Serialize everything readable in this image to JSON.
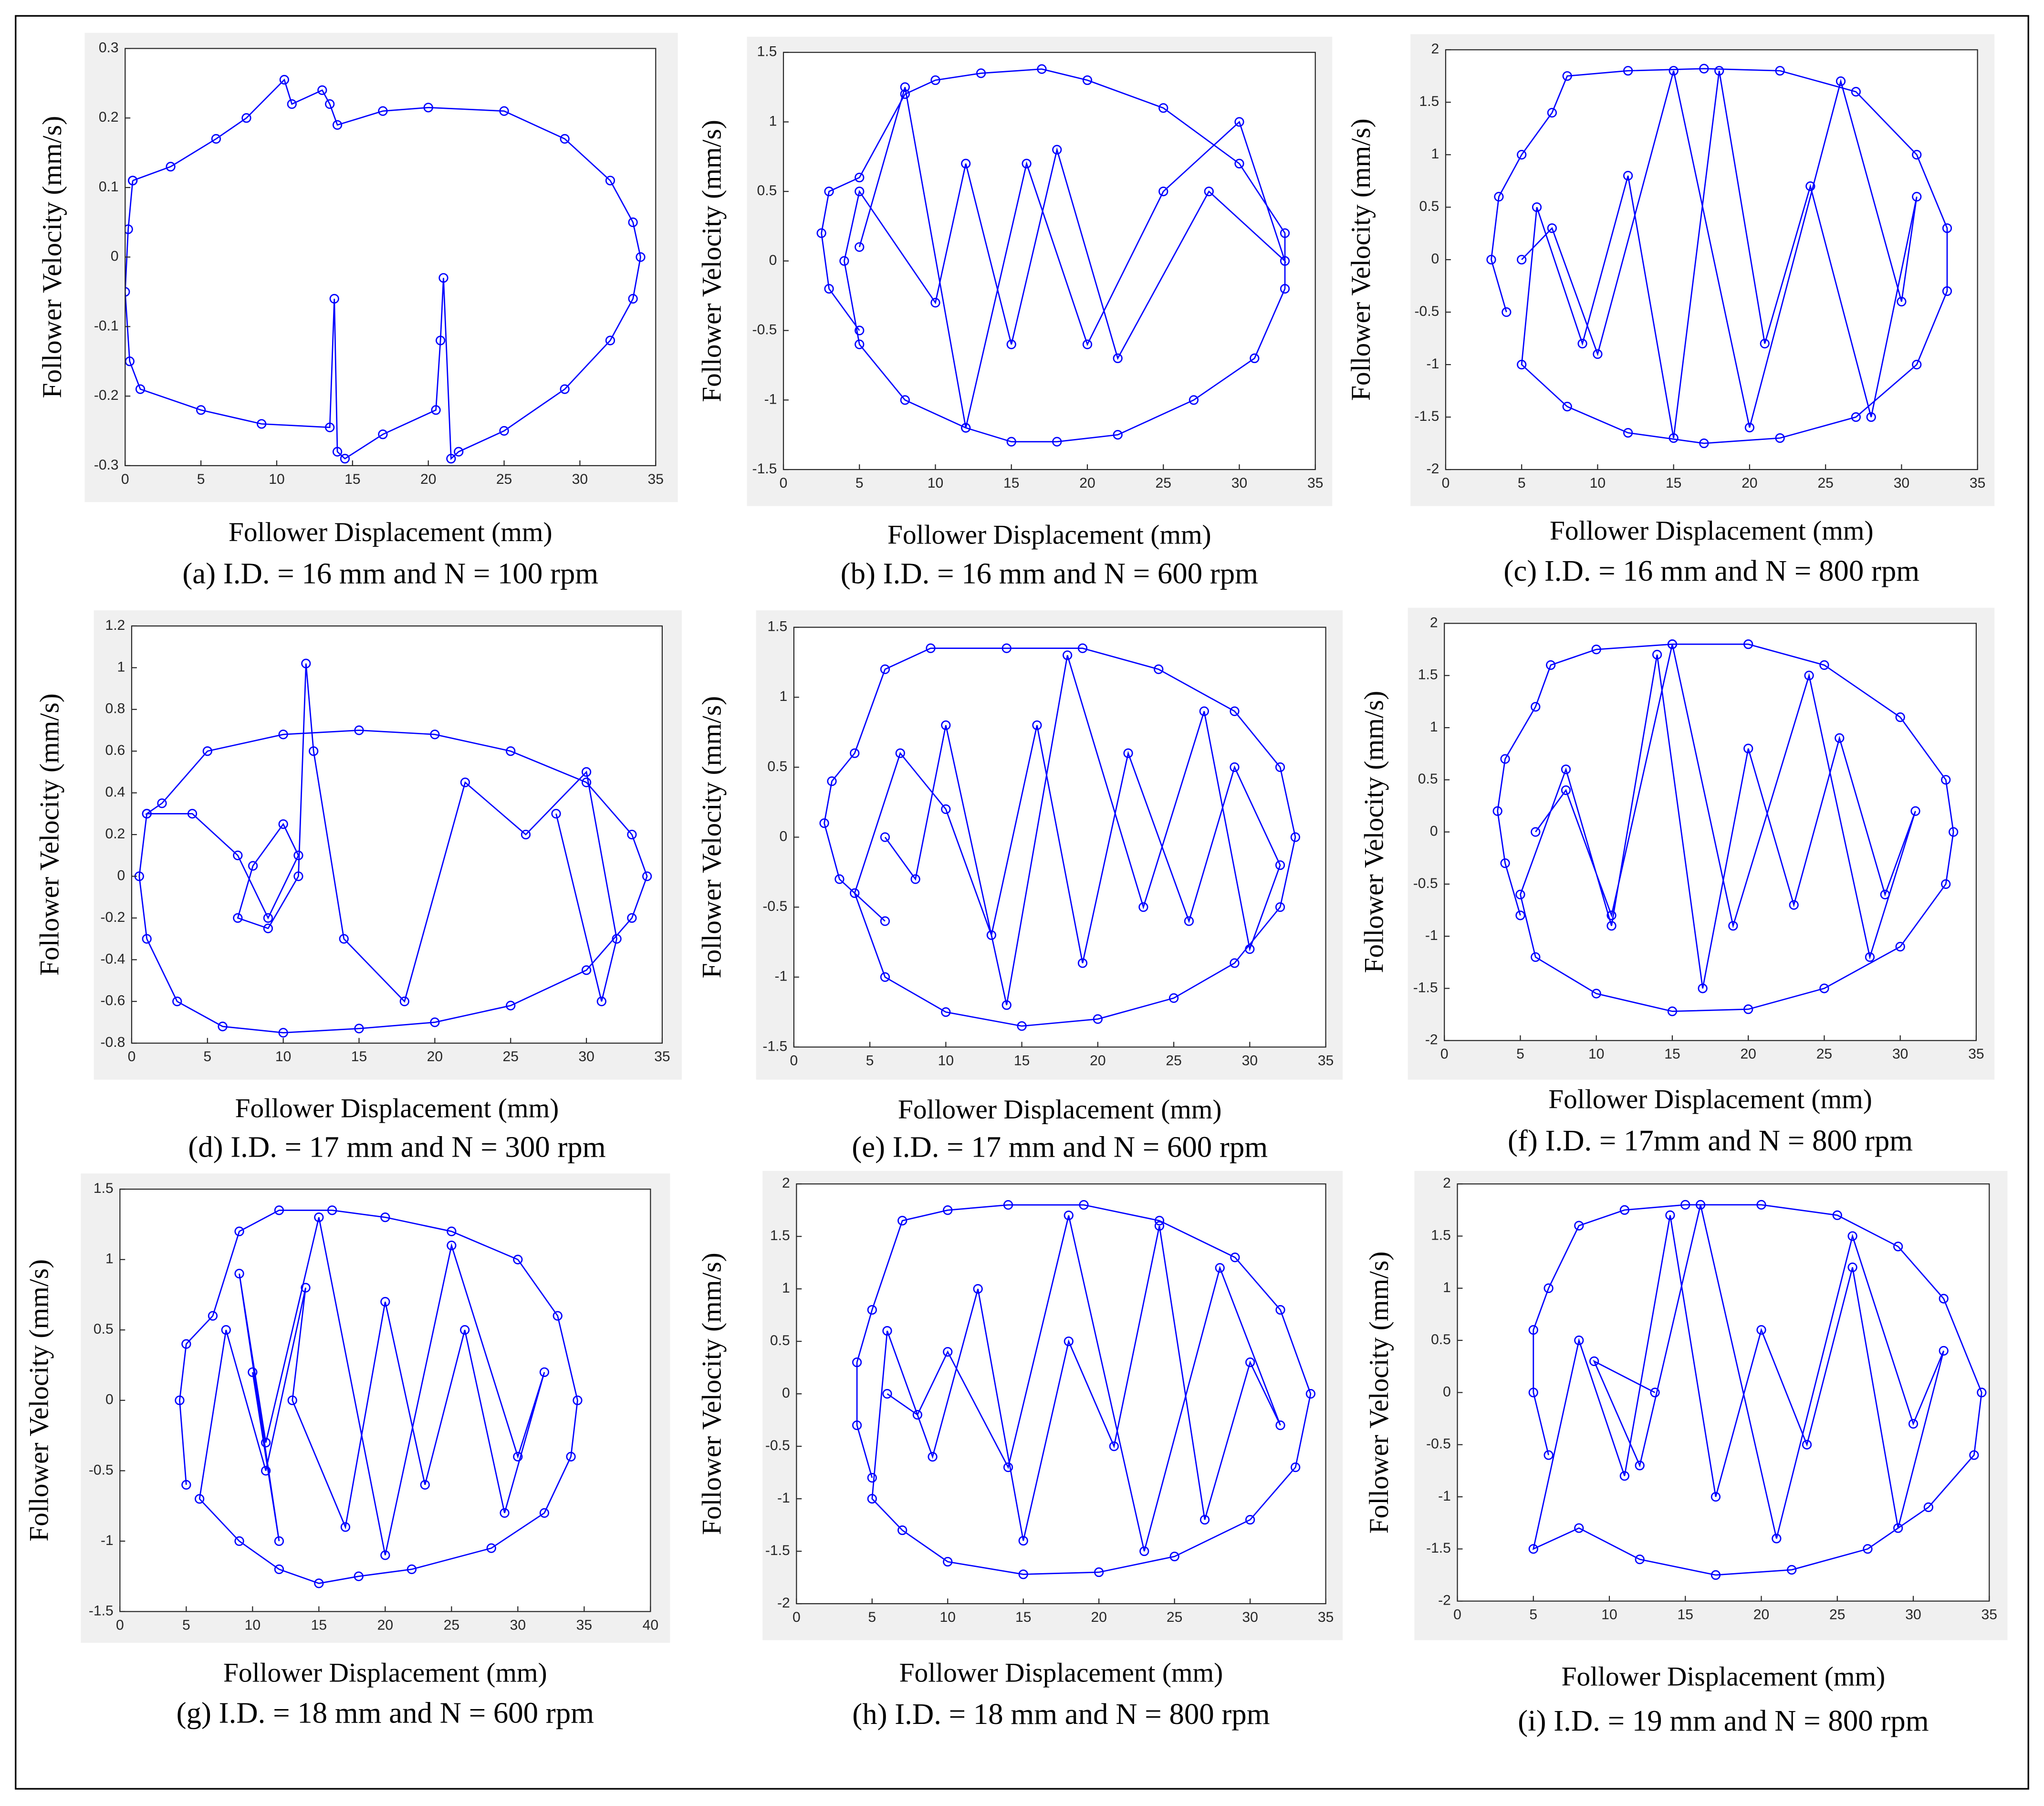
{
  "chart_data": [
    {
      "type": "line",
      "caption": "(a) I.D. = 16 mm and N = 100 rpm",
      "xlabel": "Follower Displacement (mm)",
      "ylabel": "Follower Velocity (mm/s)",
      "marker": "o",
      "xlim": [
        0,
        35
      ],
      "ylim": [
        -0.3,
        0.3
      ],
      "xticks": [
        0,
        5,
        10,
        15,
        20,
        25,
        30,
        35
      ],
      "yticks": [
        -0.3,
        -0.2,
        -0.1,
        0,
        0.1,
        0.2,
        0.3
      ],
      "x": [
        0.5,
        3,
        6,
        8,
        10.5,
        11,
        13,
        13.5,
        14,
        17,
        20,
        25,
        29,
        32,
        33.5,
        34,
        33.5,
        32,
        29,
        25,
        22,
        21.5,
        21,
        20.8,
        20.5,
        17,
        14.5,
        14,
        13.8,
        13.5,
        9,
        5,
        1,
        0.3,
        0,
        0.2,
        0.5
      ],
      "series": [
        {
          "color": "#0000ff",
          "values": [
            0.11,
            0.13,
            0.17,
            0.2,
            0.255,
            0.22,
            0.24,
            0.22,
            0.19,
            0.21,
            0.215,
            0.21,
            0.17,
            0.11,
            0.05,
            0,
            -0.06,
            -0.12,
            -0.19,
            -0.25,
            -0.28,
            -0.29,
            -0.03,
            -0.12,
            -0.22,
            -0.255,
            -0.29,
            -0.28,
            -0.06,
            -0.245,
            -0.24,
            -0.22,
            -0.19,
            -0.15,
            -0.05,
            0.04,
            0.11
          ]
        }
      ]
    },
    {
      "type": "line",
      "caption": "(b) I.D. = 16 mm and N = 600 rpm",
      "xlabel": "Follower Displacement (mm)",
      "ylabel": "Follower Velocity (mm/s)",
      "marker": "o",
      "xlim": [
        0,
        35
      ],
      "ylim": [
        -1.5,
        1.5
      ],
      "xticks": [
        0,
        5,
        10,
        15,
        20,
        25,
        30,
        35
      ],
      "yticks": [
        -1.5,
        -1,
        -0.5,
        0,
        0.5,
        1,
        1.5
      ],
      "x": [
        5,
        3,
        2.5,
        3,
        5,
        8,
        10,
        13,
        17,
        20,
        25,
        30,
        33,
        33,
        31,
        27,
        22,
        18,
        15,
        12,
        8,
        5,
        4,
        5,
        10,
        12,
        15,
        18,
        22,
        28,
        33,
        30,
        25,
        20,
        16,
        12,
        8,
        5
      ],
      "series": [
        {
          "color": "#0000ff",
          "values": [
            -0.5,
            -0.2,
            0.2,
            0.5,
            0.6,
            1.2,
            1.3,
            1.35,
            1.38,
            1.3,
            1.1,
            0.7,
            0.2,
            -0.2,
            -0.7,
            -1.0,
            -1.25,
            -1.3,
            -1.3,
            -1.2,
            -1.0,
            -0.6,
            0,
            0.5,
            -0.3,
            0.7,
            -0.6,
            0.8,
            -0.7,
            0.5,
            0,
            1.0,
            0.5,
            -0.6,
            0.7,
            -1.2,
            1.25,
            0.1
          ]
        }
      ]
    },
    {
      "type": "line",
      "caption": "(c) I.D. = 16 mm and N = 800 rpm",
      "xlabel": "Follower Displacement (mm)",
      "ylabel": "Follower Velocity (mm/s)",
      "marker": "o",
      "xlim": [
        0,
        35
      ],
      "ylim": [
        -2,
        2
      ],
      "xticks": [
        0,
        5,
        10,
        15,
        20,
        25,
        30,
        35
      ],
      "yticks": [
        -2,
        -1.5,
        -1,
        -0.5,
        0,
        0.5,
        1,
        1.5,
        2
      ],
      "x": [
        4,
        3,
        3.5,
        5,
        7,
        8,
        12,
        17,
        22,
        27,
        31,
        33,
        33,
        31,
        27,
        22,
        17,
        12,
        8,
        5,
        6,
        9,
        12,
        15,
        18,
        21,
        24,
        28,
        31,
        30,
        26,
        20,
        15,
        10,
        7,
        5
      ],
      "series": [
        {
          "color": "#0000ff",
          "values": [
            -0.5,
            0,
            0.6,
            1.0,
            1.4,
            1.75,
            1.8,
            1.82,
            1.8,
            1.6,
            1.0,
            0.3,
            -0.3,
            -1.0,
            -1.5,
            -1.7,
            -1.75,
            -1.65,
            -1.4,
            -1.0,
            0.5,
            -0.8,
            0.8,
            -1.7,
            1.8,
            -0.8,
            0.7,
            -1.5,
            0.6,
            -0.4,
            1.7,
            -1.6,
            1.8,
            -0.9,
            0.3,
            0
          ]
        }
      ]
    },
    {
      "type": "line",
      "caption": "(d) I.D. = 17 mm and N = 300 rpm",
      "xlabel": "Follower Displacement (mm)",
      "ylabel": "Follower Velocity (mm/s)",
      "marker": "o",
      "xlim": [
        0,
        35
      ],
      "ylim": [
        -0.8,
        1.2
      ],
      "xticks": [
        0,
        5,
        10,
        15,
        20,
        25,
        30,
        35
      ],
      "yticks": [
        -0.8,
        -0.6,
        -0.4,
        -0.2,
        0,
        0.2,
        0.4,
        0.6,
        0.8,
        1,
        1.2
      ],
      "x": [
        1,
        0.5,
        1,
        3,
        6,
        10,
        15,
        20,
        25,
        30,
        33,
        34,
        33,
        30,
        25,
        20,
        15,
        10,
        5,
        2,
        1,
        4,
        7,
        9,
        11,
        10,
        8,
        7,
        9,
        11,
        11.5,
        12,
        14,
        18,
        22,
        26,
        30,
        32,
        31,
        28
      ],
      "series": [
        {
          "color": "#0000ff",
          "values": [
            0.3,
            0,
            -0.3,
            -0.6,
            -0.72,
            -0.75,
            -0.73,
            -0.7,
            -0.62,
            -0.45,
            -0.2,
            0,
            0.2,
            0.45,
            0.6,
            0.68,
            0.7,
            0.68,
            0.6,
            0.35,
            0.3,
            0.3,
            0.1,
            -0.2,
            0.1,
            0.25,
            0.05,
            -0.2,
            -0.25,
            0,
            1.02,
            0.6,
            -0.3,
            -0.6,
            0.45,
            0.2,
            0.5,
            -0.3,
            -0.6,
            0.3
          ]
        }
      ]
    },
    {
      "type": "line",
      "caption": "(e) I.D. = 17 mm and N = 600 rpm",
      "xlabel": "Follower Displacement (mm)",
      "ylabel": "Follower Velocity (mm/s)",
      "marker": "o",
      "xlim": [
        0,
        35
      ],
      "ylim": [
        -1.5,
        1.5
      ],
      "xticks": [
        0,
        5,
        10,
        15,
        20,
        25,
        30,
        35
      ],
      "yticks": [
        -1.5,
        -1,
        -0.5,
        0,
        0.5,
        1,
        1.5
      ],
      "x": [
        6,
        3,
        2,
        2.5,
        4,
        6,
        9,
        14,
        19,
        24,
        29,
        32,
        33,
        32,
        29,
        25,
        20,
        15,
        10,
        6,
        4,
        7,
        10,
        13,
        16,
        19,
        22,
        26,
        29,
        32,
        30,
        27,
        23,
        18,
        14,
        10,
        8,
        6
      ],
      "series": [
        {
          "color": "#0000ff",
          "values": [
            -0.6,
            -0.3,
            0.1,
            0.4,
            0.6,
            1.2,
            1.35,
            1.35,
            1.35,
            1.2,
            0.9,
            0.5,
            0,
            -0.5,
            -0.9,
            -1.15,
            -1.3,
            -1.35,
            -1.25,
            -1.0,
            -0.4,
            0.6,
            0.2,
            -0.7,
            0.8,
            -0.9,
            0.6,
            -0.6,
            0.5,
            -0.2,
            -0.8,
            0.9,
            -0.5,
            1.3,
            -1.2,
            0.8,
            -0.3,
            0
          ]
        }
      ]
    },
    {
      "type": "line",
      "caption": "(f) I.D. =  17mm and N = 800 rpm",
      "xlabel": "Follower Displacement (mm)",
      "ylabel": "Follower Velocity (mm/s)",
      "marker": "o",
      "xlim": [
        0,
        35
      ],
      "ylim": [
        -2,
        2
      ],
      "xticks": [
        0,
        5,
        10,
        15,
        20,
        25,
        30,
        35
      ],
      "yticks": [
        -2,
        -1.5,
        -1,
        -0.5,
        0,
        0.5,
        1,
        1.5,
        2
      ],
      "x": [
        5,
        4,
        3.5,
        4,
        6,
        7,
        10,
        15,
        20,
        25,
        30,
        33,
        33.5,
        33,
        30,
        25,
        20,
        15,
        10,
        6,
        5,
        8,
        11,
        14,
        17,
        20,
        23,
        26,
        29,
        31,
        28,
        24,
        19,
        15,
        11,
        8,
        6
      ],
      "series": [
        {
          "color": "#0000ff",
          "values": [
            -0.8,
            -0.3,
            0.2,
            0.7,
            1.2,
            1.6,
            1.75,
            1.8,
            1.8,
            1.6,
            1.1,
            0.5,
            0,
            -0.5,
            -1.1,
            -1.5,
            -1.7,
            -1.72,
            -1.55,
            -1.2,
            -0.6,
            0.6,
            -0.9,
            1.7,
            -1.5,
            0.8,
            -0.7,
            0.9,
            -0.6,
            0.2,
            -1.2,
            1.5,
            -0.9,
            1.8,
            -0.8,
            0.4,
            0
          ]
        }
      ]
    },
    {
      "type": "line",
      "caption": "(g) I.D. = 18  mm and N = 600 rpm",
      "xlabel": "Follower Displacement (mm)",
      "ylabel": "Follower Velocity (mm/s)",
      "marker": "o",
      "xlim": [
        0,
        40
      ],
      "ylim": [
        -1.5,
        1.5
      ],
      "xticks": [
        0,
        5,
        10,
        15,
        20,
        25,
        30,
        35,
        40
      ],
      "yticks": [
        -1.5,
        -1,
        -0.5,
        0,
        0.5,
        1,
        1.5
      ],
      "x": [
        5,
        4.5,
        5,
        7,
        9,
        12,
        16,
        20,
        25,
        30,
        33,
        34.5,
        34,
        32,
        28,
        22,
        18,
        15,
        12,
        9,
        6,
        8,
        11,
        14,
        13,
        17,
        20,
        23,
        26,
        29,
        32,
        30,
        25,
        20,
        15,
        11,
        9,
        12,
        10
      ],
      "series": [
        {
          "color": "#0000ff",
          "values": [
            -0.6,
            0,
            0.4,
            0.6,
            1.2,
            1.35,
            1.35,
            1.3,
            1.2,
            1.0,
            0.6,
            0,
            -0.4,
            -0.8,
            -1.05,
            -1.2,
            -1.25,
            -1.3,
            -1.2,
            -1.0,
            -0.7,
            0.5,
            -0.5,
            0.8,
            0,
            -0.9,
            0.7,
            -0.6,
            0.5,
            -0.8,
            0.2,
            -0.4,
            1.1,
            -1.1,
            1.3,
            -0.3,
            0.9,
            -1.0,
            0.2
          ]
        }
      ]
    },
    {
      "type": "line",
      "caption": "(h) I.D. = 18 mm and N = 800 rpm",
      "xlabel": "Follower Displacement (mm)",
      "ylabel": "Follower Velocity (mm/s)",
      "marker": "o",
      "xlim": [
        0,
        35
      ],
      "ylim": [
        -2,
        2
      ],
      "xticks": [
        0,
        5,
        10,
        15,
        20,
        25,
        30,
        35
      ],
      "yticks": [
        -2,
        -1.5,
        -1,
        -0.5,
        0,
        0.5,
        1,
        1.5,
        2
      ],
      "x": [
        5,
        4,
        4,
        5,
        7,
        10,
        14,
        19,
        24,
        29,
        32,
        34,
        33,
        30,
        25,
        20,
        15,
        10,
        7,
        5,
        6,
        9,
        12,
        15,
        18,
        21,
        24,
        27,
        30,
        32,
        28,
        23,
        18,
        14,
        10,
        8,
        6
      ],
      "series": [
        {
          "color": "#0000ff",
          "values": [
            -0.8,
            -0.3,
            0.3,
            0.8,
            1.65,
            1.75,
            1.8,
            1.8,
            1.65,
            1.3,
            0.8,
            0,
            -0.7,
            -1.2,
            -1.55,
            -1.7,
            -1.72,
            -1.6,
            -1.3,
            -1.0,
            0.6,
            -0.6,
            1.0,
            -1.4,
            0.5,
            -0.5,
            1.6,
            -1.2,
            0.3,
            -0.3,
            1.2,
            -1.5,
            1.7,
            -0.7,
            0.4,
            -0.2,
            0
          ]
        }
      ]
    },
    {
      "type": "line",
      "caption": "(i) I.D. = 19 mm and N = 800 rpm",
      "xlabel": "Follower Displacement (mm)",
      "ylabel": "Follower Velocity (mm/s)",
      "marker": "o",
      "xlim": [
        0,
        35
      ],
      "ylim": [
        -2,
        2
      ],
      "xticks": [
        0,
        5,
        10,
        15,
        20,
        25,
        30,
        35
      ],
      "yticks": [
        -2,
        -1.5,
        -1,
        -0.5,
        0,
        0.5,
        1,
        1.5,
        2
      ],
      "x": [
        6,
        5,
        5,
        6,
        8,
        11,
        15,
        20,
        25,
        29,
        32,
        34.5,
        34,
        31,
        27,
        22,
        17,
        12,
        8,
        5,
        8,
        11,
        14,
        17,
        20,
        23,
        26,
        29,
        32,
        30,
        26,
        21,
        16,
        12,
        9,
        13
      ],
      "series": [
        {
          "color": "#0000ff",
          "values": [
            -0.6,
            0,
            0.6,
            1.0,
            1.6,
            1.75,
            1.8,
            1.8,
            1.7,
            1.4,
            0.9,
            0,
            -0.6,
            -1.1,
            -1.5,
            -1.7,
            -1.75,
            -1.6,
            -1.3,
            -1.5,
            0.5,
            -0.8,
            1.7,
            -1.0,
            0.6,
            -0.5,
            1.2,
            -1.3,
            0.4,
            -0.3,
            1.5,
            -1.4,
            1.8,
            -0.7,
            0.3,
            0
          ]
        }
      ]
    }
  ]
}
